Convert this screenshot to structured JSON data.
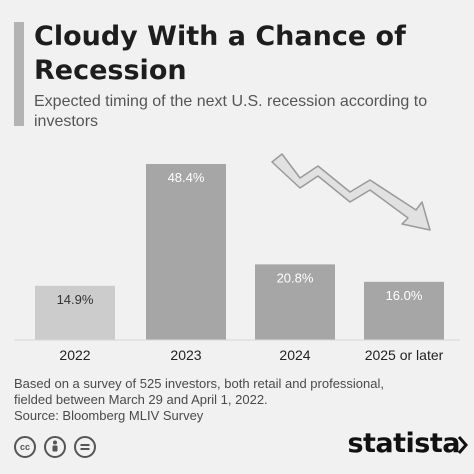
{
  "header": {
    "title": "Cloudy With a Chance of Recession",
    "subtitle": "Expected timing of the next U.S. recession according to investors"
  },
  "chart_data": {
    "type": "bar",
    "categories": [
      "2022",
      "2023",
      "2024",
      "2025 or later"
    ],
    "values": [
      14.9,
      48.4,
      20.8,
      16.0
    ],
    "value_labels": [
      "14.9%",
      "48.4%",
      "20.8%",
      "16.0%"
    ],
    "unit": "%",
    "ylim": [
      0,
      48.4
    ],
    "grid": false,
    "legend": "none",
    "colors": {
      "first_bar": "#cccccc",
      "bars": "#a6a6a6",
      "value_label_first": "#333333",
      "value_label": "#ffffff",
      "arrow": "#dddddd",
      "arrow_stroke": "#9a9a9a"
    }
  },
  "footnote": {
    "line1": "Based on a survey of 525 investors, both retail and professional,",
    "line2": "fielded between March 29 and April 1, 2022.",
    "source": "Source: Bloomberg MLIV Survey"
  },
  "footer": {
    "brand": "statista",
    "license_icons": [
      "cc-icon",
      "attribution-icon",
      "no-derivatives-icon"
    ]
  }
}
